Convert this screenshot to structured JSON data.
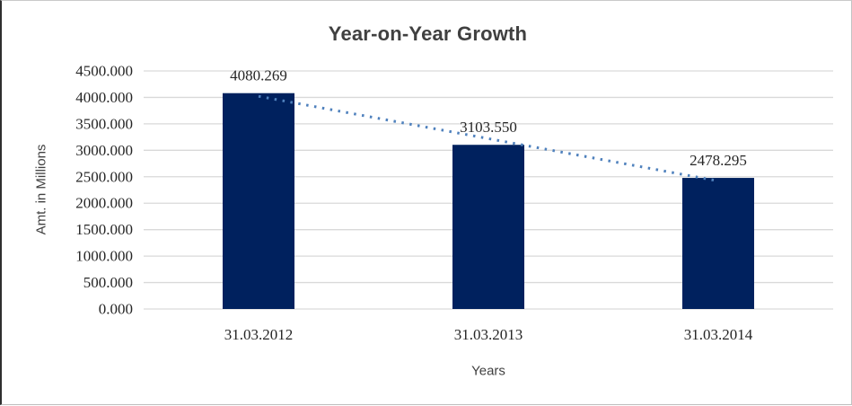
{
  "chart_data": {
    "type": "bar",
    "title": "Year-on-Year Growth",
    "xlabel": "Years",
    "ylabel": "Amt. in Millions",
    "categories": [
      "31.03.2012",
      "31.03.2013",
      "31.03.2014"
    ],
    "values": [
      4080.269,
      3103.55,
      2478.295
    ],
    "data_labels": [
      "4080.269",
      "3103.550",
      "2478.295"
    ],
    "ylim": [
      0,
      4500
    ],
    "ytick_step": 500,
    "ytick_labels": [
      "4500.000",
      "4000.000",
      "3500.000",
      "3000.000",
      "2500.000",
      "2000.000",
      "1500.000",
      "1000.000",
      "500.000",
      "0.000"
    ],
    "grid": "horizontal",
    "legend": "none",
    "bar_color": "#00215e",
    "gridline_color": "#d9d9d9",
    "trendline": {
      "type": "linear",
      "style": "dotted",
      "color": "#4f81bd"
    },
    "title_color": "#404040",
    "label_color": "#262626"
  }
}
